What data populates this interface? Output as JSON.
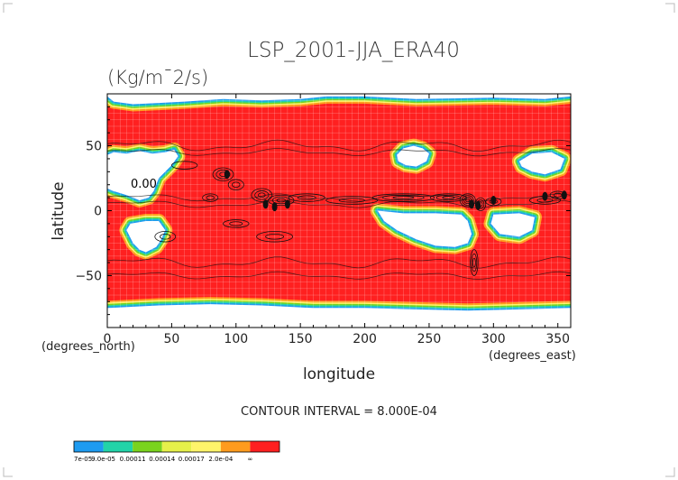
{
  "chart_data": {
    "type": "heatmap",
    "title": "LSP_2001-JJA_ERA40",
    "subtitle": "(Kg/m¯2/s)",
    "xlabel": "longitude",
    "ylabel": "latitude",
    "x_unit": "(degrees_east)",
    "y_unit": "(degrees_north)",
    "xlim": [
      0,
      360
    ],
    "ylim": [
      -90,
      90
    ],
    "x_ticks": [
      0,
      50,
      100,
      150,
      200,
      250,
      300,
      350
    ],
    "y_ticks": [
      50,
      0,
      -50
    ],
    "contour_interval_text": "CONTOUR INTERVAL = 8.000E-04",
    "contour_label": "0.00",
    "colorbar": {
      "labels": [
        "7e-05",
        "9.0e-05",
        "0.00011",
        "0.00014",
        "0.00017",
        "2.0e-04",
        "∞"
      ],
      "colors": [
        "#1e9bf0",
        "#22d3a8",
        "#7ad31e",
        "#e6f04a",
        "#fff46a",
        "#ff9b1e",
        "#ff2020"
      ]
    },
    "low_value_regions": [
      {
        "name": "north-pole",
        "polygon": [
          [
            0,
            88
          ],
          [
            5,
            84
          ],
          [
            20,
            82
          ],
          [
            40,
            83
          ],
          [
            60,
            84
          ],
          [
            90,
            86
          ],
          [
            120,
            85
          ],
          [
            150,
            86
          ],
          [
            170,
            88
          ],
          [
            200,
            88
          ],
          [
            240,
            86
          ],
          [
            300,
            87
          ],
          [
            340,
            86
          ],
          [
            360,
            88
          ],
          [
            360,
            90
          ],
          [
            0,
            90
          ]
        ]
      },
      {
        "name": "n-africa-sahara",
        "polygon": [
          [
            0,
            43
          ],
          [
            5,
            45
          ],
          [
            15,
            44
          ],
          [
            25,
            46
          ],
          [
            35,
            44
          ],
          [
            45,
            45
          ],
          [
            52,
            47
          ],
          [
            55,
            42
          ],
          [
            50,
            35
          ],
          [
            45,
            30
          ],
          [
            40,
            25
          ],
          [
            36,
            15
          ],
          [
            32,
            10
          ],
          [
            25,
            8
          ],
          [
            15,
            12
          ],
          [
            5,
            15
          ],
          [
            0,
            17
          ]
        ]
      },
      {
        "name": "africa-south",
        "polygon": [
          [
            30,
            -8
          ],
          [
            40,
            -8
          ],
          [
            45,
            -15
          ],
          [
            42,
            -22
          ],
          [
            38,
            -28
          ],
          [
            30,
            -32
          ],
          [
            25,
            -30
          ],
          [
            20,
            -25
          ],
          [
            15,
            -15
          ],
          [
            18,
            -10
          ]
        ]
      },
      {
        "name": "n-pacific-east",
        "polygon": [
          [
            225,
            43
          ],
          [
            230,
            48
          ],
          [
            238,
            50
          ],
          [
            245,
            48
          ],
          [
            250,
            44
          ],
          [
            248,
            38
          ],
          [
            240,
            34
          ],
          [
            232,
            35
          ],
          [
            226,
            38
          ]
        ]
      },
      {
        "name": "s-pacific-east",
        "polygon": [
          [
            210,
            0
          ],
          [
            230,
            -2
          ],
          [
            255,
            -2
          ],
          [
            275,
            -3
          ],
          [
            280,
            -8
          ],
          [
            283,
            -18
          ],
          [
            280,
            -25
          ],
          [
            270,
            -28
          ],
          [
            255,
            -27
          ],
          [
            240,
            -22
          ],
          [
            225,
            -15
          ],
          [
            215,
            -8
          ]
        ]
      },
      {
        "name": "s-atlantic",
        "polygon": [
          [
            300,
            -3
          ],
          [
            320,
            -2
          ],
          [
            332,
            -5
          ],
          [
            330,
            -15
          ],
          [
            320,
            -20
          ],
          [
            305,
            -18
          ],
          [
            298,
            -10
          ]
        ]
      },
      {
        "name": "n-atlantic-west",
        "polygon": [
          [
            320,
            38
          ],
          [
            330,
            44
          ],
          [
            345,
            45
          ],
          [
            355,
            40
          ],
          [
            352,
            32
          ],
          [
            340,
            28
          ],
          [
            330,
            30
          ],
          [
            322,
            34
          ]
        ]
      },
      {
        "name": "antarctica",
        "polygon": [
          [
            0,
            -75
          ],
          [
            40,
            -73
          ],
          [
            80,
            -72
          ],
          [
            120,
            -73
          ],
          [
            160,
            -75
          ],
          [
            200,
            -75
          ],
          [
            240,
            -76
          ],
          [
            280,
            -77
          ],
          [
            320,
            -76
          ],
          [
            360,
            -75
          ],
          [
            360,
            -90
          ],
          [
            0,
            -90
          ]
        ]
      }
    ]
  }
}
